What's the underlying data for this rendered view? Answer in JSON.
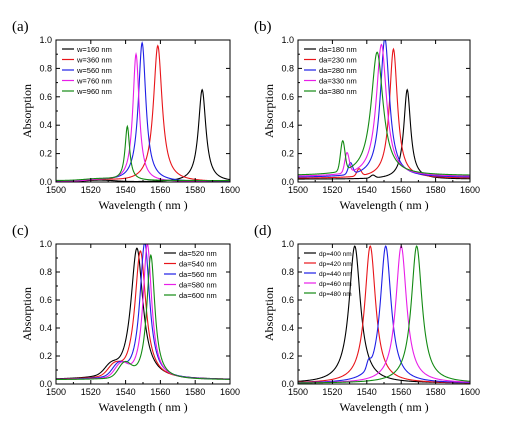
{
  "colors": {
    "black": "#000000",
    "red": "#e8151a",
    "blue": "#1f1fe6",
    "magenta": "#e81ee8",
    "green": "#138a13"
  },
  "chart_data": [
    {
      "panel_label": "(a)",
      "type": "line",
      "xlabel": "Wavelength ( nm )",
      "ylabel": "Absorption",
      "xlim": [
        1500,
        1600
      ],
      "ylim": [
        0,
        1.0
      ],
      "xticks": [
        "1500",
        "1520",
        "1540",
        "1560",
        "1580",
        "1600"
      ],
      "yticks": [
        "0.0",
        "0.2",
        "0.4",
        "0.6",
        "0.8",
        "1.0"
      ],
      "legend_position": "top-left",
      "series": [
        {
          "name": "w=160 nm",
          "color": "#000000",
          "peak_x": 1584,
          "peak_y": 0.65,
          "width": 2.6
        },
        {
          "name": "w=360 nm",
          "color": "#e8151a",
          "peak_x": 1558.5,
          "peak_y": 0.96,
          "width": 3.0
        },
        {
          "name": "w=560 nm",
          "color": "#1f1fe6",
          "peak_x": 1549.5,
          "peak_y": 0.98,
          "width": 2.6
        },
        {
          "name": "w=760 nm",
          "color": "#e81ee8",
          "peak_x": 1546,
          "peak_y": 0.9,
          "width": 2.2
        },
        {
          "name": "w=960 nm",
          "color": "#138a13",
          "peak_x": 1541,
          "peak_y": 0.38,
          "width": 1.6
        }
      ]
    },
    {
      "panel_label": "(b)",
      "type": "line",
      "xlabel": "Wavelength ( nm )",
      "ylabel": "Absorption",
      "xlim": [
        1500,
        1600
      ],
      "ylim": [
        0,
        1.0
      ],
      "xticks": [
        "1500",
        "1520",
        "1540",
        "1560",
        "1580",
        "1600"
      ],
      "yticks": [
        "0.0",
        "0.2",
        "0.4",
        "0.6",
        "0.8",
        "1.0"
      ],
      "legend_position": "top-left",
      "series": [
        {
          "name": "da=180 nm",
          "color": "#000000",
          "peak_x": 1563.5,
          "peak_y": 0.63,
          "width": 2.4
        },
        {
          "name": "da=230 nm",
          "color": "#e8151a",
          "peak_x": 1555.5,
          "peak_y": 0.91,
          "width": 2.8
        },
        {
          "name": "da=280 nm",
          "color": "#1f1fe6",
          "peak_x": 1550.5,
          "peak_y": 0.98,
          "width": 3.2
        },
        {
          "name": "da=330 nm",
          "color": "#e81ee8",
          "peak_x": 1548.5,
          "peak_y": 0.93,
          "width": 3.6
        },
        {
          "name": "da=380 nm",
          "color": "#138a13",
          "peak_x": 1546,
          "peak_y": 0.87,
          "width": 4.2
        }
      ]
    },
    {
      "panel_label": "(c)",
      "type": "line",
      "xlabel": "Wavelength ( nm )",
      "ylabel": "Absorption",
      "xlim": [
        1500,
        1600
      ],
      "ylim": [
        0,
        1.0
      ],
      "xticks": [
        "1500",
        "1520",
        "1540",
        "1560",
        "1580",
        "1600"
      ],
      "yticks": [
        "0.0",
        "0.2",
        "0.4",
        "0.6",
        "0.8",
        "1.0"
      ],
      "legend_position": "top-right",
      "series": [
        {
          "name": "da=520 nm",
          "color": "#000000",
          "peak_x": 1546.5,
          "peak_y": 0.94,
          "width": 4.2
        },
        {
          "name": "da=540 nm",
          "color": "#e8151a",
          "peak_x": 1548.5,
          "peak_y": 0.92,
          "width": 3.8
        },
        {
          "name": "da=560 nm",
          "color": "#1f1fe6",
          "peak_x": 1551,
          "peak_y": 0.98,
          "width": 3.4
        },
        {
          "name": "da=580 nm",
          "color": "#e81ee8",
          "peak_x": 1552.5,
          "peak_y": 0.97,
          "width": 3.0
        },
        {
          "name": "da=600 nm",
          "color": "#138a13",
          "peak_x": 1554.5,
          "peak_y": 0.89,
          "width": 2.8
        }
      ]
    },
    {
      "panel_label": "(d)",
      "type": "line",
      "xlabel": "Wavelength ( nm )",
      "ylabel": "Absorption",
      "xlim": [
        1500,
        1600
      ],
      "ylim": [
        0,
        1.0
      ],
      "xticks": [
        "1500",
        "1520",
        "1540",
        "1560",
        "1580",
        "1600"
      ],
      "yticks": [
        "0.0",
        "0.2",
        "0.4",
        "0.6",
        "0.8",
        "1.0"
      ],
      "legend_position": "top-left",
      "series": [
        {
          "name": "dp=400 nm",
          "color": "#000000",
          "peak_x": 1533,
          "peak_y": 0.98,
          "width": 4.0
        },
        {
          "name": "dp=420 nm",
          "color": "#e8151a",
          "peak_x": 1542,
          "peak_y": 0.98,
          "width": 3.8
        },
        {
          "name": "dp=440 nm",
          "color": "#1f1fe6",
          "peak_x": 1551,
          "peak_y": 0.98,
          "width": 3.8
        },
        {
          "name": "dp=460 nm",
          "color": "#e81ee8",
          "peak_x": 1560,
          "peak_y": 0.98,
          "width": 3.8
        },
        {
          "name": "dp=480 nm",
          "color": "#138a13",
          "peak_x": 1569,
          "peak_y": 0.98,
          "width": 3.8
        }
      ]
    }
  ]
}
